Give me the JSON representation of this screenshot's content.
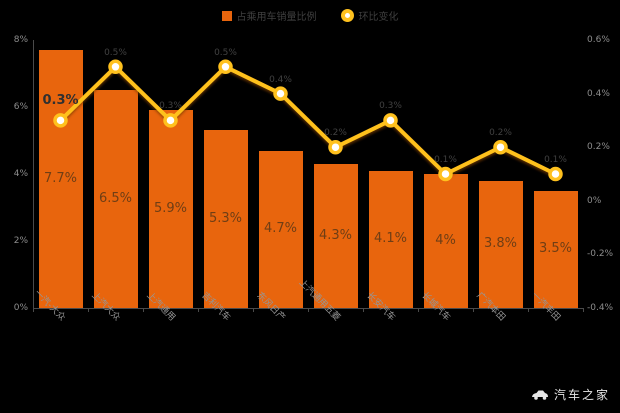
{
  "page": {
    "background": "#000000",
    "watermark": "汽车之家"
  },
  "legend": [
    {
      "label": "占乘用车销量比例",
      "marker": "square",
      "color": "#e8650d"
    },
    {
      "label": "环比变化",
      "marker": "circle",
      "color": "#ffc11e"
    }
  ],
  "chart_data": {
    "type": "bar+line",
    "title": "",
    "categories": [
      "一汽-大众",
      "上汽大众",
      "上汽通用",
      "吉利汽车",
      "东风日产",
      "上汽通用五菱",
      "长安汽车",
      "长城汽车",
      "广汽本田",
      "一汽丰田"
    ],
    "series": [
      {
        "name": "占乘用车销量比例",
        "type": "bar",
        "axis": "left",
        "color": "#e8650d",
        "values": [
          7.7,
          6.5,
          5.9,
          5.3,
          4.7,
          4.3,
          4.1,
          4.0,
          3.8,
          3.5
        ],
        "labels": [
          "7.7%",
          "6.5%",
          "5.9%",
          "5.3%",
          "4.7%",
          "4.3%",
          "4.1%",
          "4%",
          "3.8%",
          "3.5%"
        ]
      },
      {
        "name": "环比变化",
        "type": "line",
        "axis": "right",
        "color": "#ffc11e",
        "point_fill": "#ffffff",
        "values": [
          0.3,
          0.5,
          0.3,
          0.5,
          0.4,
          0.2,
          0.3,
          0.1,
          0.2,
          0.1
        ],
        "labels": [
          "0.3%",
          "0.5%",
          "0.3%",
          "0.5%",
          "0.4%",
          "0.2%",
          "0.3%",
          "0.1%",
          "0.2%",
          "0.1%"
        ]
      }
    ],
    "left_axis": {
      "min": 0,
      "max": 8,
      "ticks": [
        "8%",
        "6%",
        "4%",
        "2%",
        "0%"
      ]
    },
    "right_axis": {
      "min": -0.4,
      "max": 0.6,
      "ticks": [
        "0.6%",
        "0.4%",
        "0.2%",
        "0%",
        "-0.2%",
        "-0.4%"
      ]
    },
    "grid": false,
    "legend_position": "top"
  }
}
